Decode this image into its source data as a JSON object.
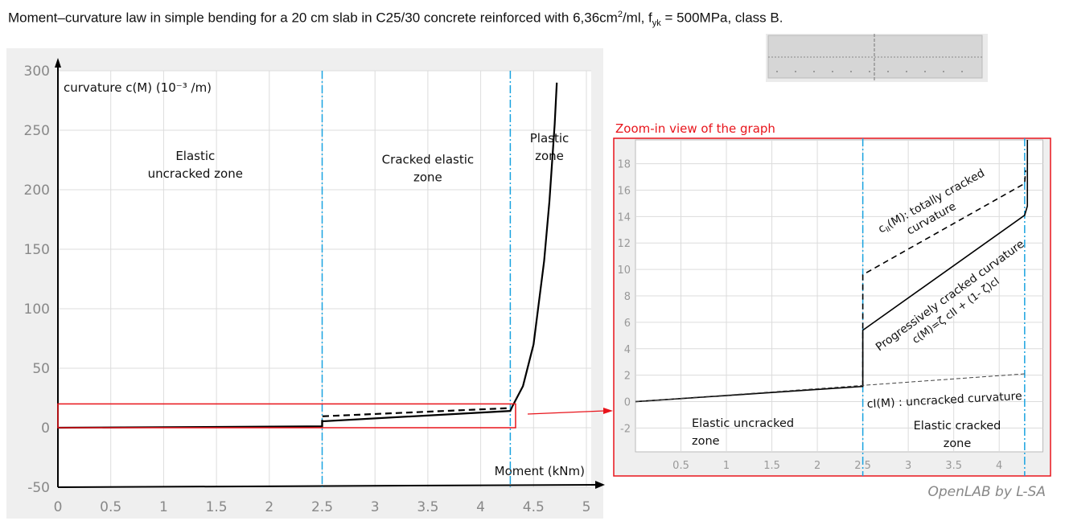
{
  "title": {
    "text_before": "Moment–curvature law in simple bending for a 20 cm slab in C25/30 concrete reinforced with 6,36cm",
    "sup": "2",
    "text_mid": "/ml, f",
    "sub": "yk",
    "text_after": " = 500MPa, class B."
  },
  "watermark": "OpenLAB by L-SA",
  "colors": {
    "zone_line": "#1aa3e0",
    "highlight": "#e8141b",
    "curve": "#000000",
    "panel": "#efefef",
    "grid": "#dcdcdc"
  },
  "chart_data": [
    {
      "type": "line",
      "xlabel": "Moment (kNm)",
      "ylabel": "curvature c(M) (10⁻³ /m)",
      "xlim": [
        0,
        5
      ],
      "ylim": [
        -50,
        300
      ],
      "xticks": [
        0,
        0.5,
        1,
        1.5,
        2,
        2.5,
        3,
        3.5,
        4,
        4.5,
        5
      ],
      "yticks": [
        -50,
        0,
        50,
        100,
        150,
        200,
        250,
        300
      ],
      "grid": true,
      "zone_boundaries": [
        2.5,
        4.28
      ],
      "annotations": [
        {
          "text": [
            "Elastic",
            "uncracked zone"
          ],
          "x": 1.3,
          "y": 225
        },
        {
          "text": [
            "Cracked elastic",
            "zone"
          ],
          "x": 3.5,
          "y": 222
        },
        {
          "text": [
            "Plastic",
            "zone"
          ],
          "x": 4.65,
          "y": 240
        }
      ],
      "series": [
        {
          "style": "solid",
          "x": [
            0,
            2.5,
            2.5,
            4.28,
            4.3,
            4.4,
            4.5,
            4.6,
            4.65,
            4.7,
            4.72
          ],
          "y": [
            0,
            1.15,
            5.4,
            14.1,
            18,
            35,
            70,
            140,
            190,
            255,
            290
          ]
        },
        {
          "style": "dashed",
          "x": [
            2.5,
            2.5,
            4.28
          ],
          "y": [
            1.15,
            9.6,
            16.5
          ]
        }
      ],
      "highlight_box": {
        "x": [
          0,
          4.33
        ],
        "y": [
          0,
          20
        ]
      }
    },
    {
      "type": "line",
      "title": "Zoom-in view of the graph",
      "xlim": [
        0,
        4.33
      ],
      "ylim": [
        -3.8,
        19.8
      ],
      "xticks": [
        0.5,
        1,
        1.5,
        2,
        2.5,
        3,
        3.5,
        4
      ],
      "yticks": [
        -2,
        0,
        2,
        4,
        6,
        8,
        10,
        12,
        14,
        16,
        18
      ],
      "grid": true,
      "zone_boundaries": [
        2.5,
        4.28
      ],
      "series": [
        {
          "name": "c(M)",
          "style": "solid",
          "x": [
            0,
            2.5,
            2.5,
            4.28,
            4.31,
            4.31
          ],
          "y": [
            0,
            1.15,
            5.4,
            14.1,
            14.8,
            19.8
          ]
        },
        {
          "name": "cII(M)",
          "style": "dashed",
          "x": [
            2.5,
            2.5,
            4.28,
            4.29
          ],
          "y": [
            1.15,
            9.6,
            16.5,
            17.5
          ]
        },
        {
          "name": "cI(M)",
          "style": "dashed-thin",
          "x": [
            0,
            4.28
          ],
          "y": [
            0,
            2.1
          ]
        }
      ],
      "annotations": [
        {
          "text": "cII(M): totally cracked",
          "html": "c<tspan font-size='9' dy='3'>II</tspan><tspan dy='-3'>(M): totally cracked</tspan>"
        },
        {
          "text": "curvature"
        },
        {
          "text": "Progressively cracked curvature"
        },
        {
          "text": "c(M)=ζ cII + (1- ζ)cI"
        },
        {
          "text": "cI(M) : uncracked curvature"
        },
        {
          "text": [
            "Elastic uncracked",
            "zone"
          ]
        },
        {
          "text": [
            "Elastic cracked",
            "zone"
          ]
        }
      ]
    }
  ]
}
